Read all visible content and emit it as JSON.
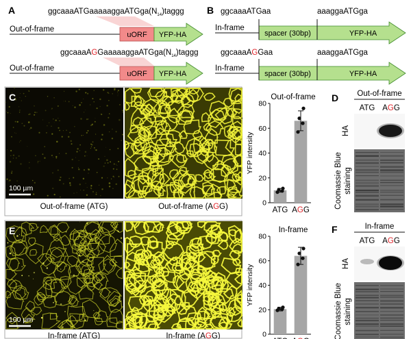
{
  "panels": {
    "A": {
      "letter": "A",
      "top": {
        "seq_prefix": "ggcaaaATGaaaaaggaATGga(N",
        "seq_sub": "14",
        "seq_suffix": ")taggg",
        "row_label": "Out-of-frame",
        "uorf_label": "uORF",
        "gene_label": "YFP-HA"
      },
      "bottom": {
        "seq_a": "ggcaaaA",
        "seq_red": "G",
        "seq_b": "GaaaaaggaATGga(N",
        "seq_sub": "14",
        "seq_suffix": ")taggg",
        "row_label": "Out-of-frame",
        "uorf_label": "uORF",
        "gene_label": "YFP-HA"
      }
    },
    "B": {
      "letter": "B",
      "top": {
        "seq_left": "ggcaaaATGaa",
        "seq_right": "aaaggaATGga",
        "row_label": "In-frame",
        "spacer_label": "spacer (30bp)",
        "gene_label": "YFP-HA"
      },
      "bottom": {
        "seq_left_a": "ggcaaaA",
        "seq_left_red": "G",
        "seq_left_b": "Gaa",
        "seq_right": "aaaggaATGga",
        "row_label": "In-frame",
        "spacer_label": "spacer (30bp)",
        "gene_label": "YFP-HA"
      }
    },
    "C": {
      "letter": "C",
      "scale_bar": "100 µm",
      "caption_left": "Out-of-frame (ATG)",
      "caption_right_a": "Out-of-frame (A",
      "caption_right_red": "G",
      "caption_right_b": "G)"
    },
    "D": {
      "letter": "D",
      "title": "Out-of-frame",
      "lane1": "ATG",
      "lane2_a": "A",
      "lane2_red": "G",
      "lane2_b": "G",
      "band_label": "HA",
      "stain_label_1": "Coomassie Blue",
      "stain_label_2": "staining"
    },
    "E": {
      "letter": "E",
      "scale_bar": "100 µm",
      "caption_left": "In-frame (ATG)",
      "caption_right_a": "In-frame (A",
      "caption_right_red": "G",
      "caption_right_b": "G)"
    },
    "F": {
      "letter": "F",
      "title": "In-frame",
      "lane1": "ATG",
      "lane2_a": "A",
      "lane2_red": "G",
      "lane2_b": "G",
      "band_label": "HA",
      "stain_label_1": "Coomassie Blue",
      "stain_label_2": "staining"
    }
  },
  "colors": {
    "accent_red": "#e0252b",
    "uorf_fill": "#f28a8a",
    "gene_fill": "#b5e08e",
    "bar_fill": "#a6a6a6",
    "point_fill": "#111111"
  },
  "chart_data": [
    {
      "type": "bar",
      "title": "Out-of-frame",
      "ylabel": "YFP intensity",
      "ylim": [
        0,
        80
      ],
      "yticks": [
        "0",
        "20",
        "40",
        "60",
        "80"
      ],
      "categories": [
        "ATG",
        "AGG"
      ],
      "values": [
        10,
        66
      ],
      "error": [
        1.5,
        8
      ],
      "points": [
        [
          8.5,
          9.5,
          10.5,
          11.5
        ],
        [
          57,
          64,
          68,
          76
        ]
      ]
    },
    {
      "type": "bar",
      "title": "In-frame",
      "ylabel": "YFP intensity",
      "ylim": [
        0,
        80
      ],
      "yticks": [
        "0",
        "20",
        "40",
        "60",
        "80"
      ],
      "categories": [
        "ATG",
        "AGG"
      ],
      "values": [
        20.5,
        64
      ],
      "error": [
        1.5,
        7
      ],
      "points": [
        [
          19.5,
          20.5,
          21,
          22
        ],
        [
          57,
          62,
          66,
          70
        ]
      ]
    }
  ]
}
